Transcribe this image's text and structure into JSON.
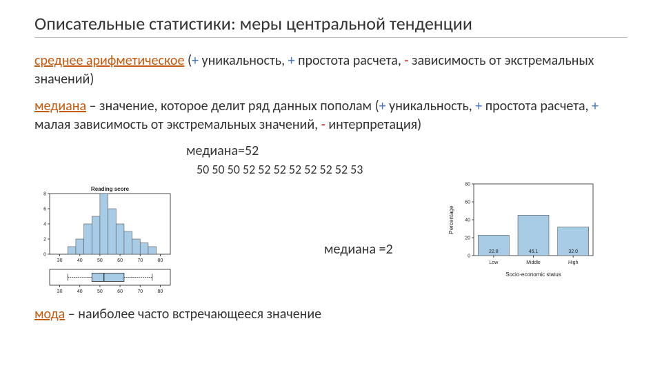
{
  "title": "Описательные статистики: меры центральной тенденции",
  "mean": {
    "term": "среднее арифметическое",
    "desc1": " (",
    "plus1": "+",
    "desc2": " уникальность, ",
    "plus2": "+",
    "desc3": " простота расчета, ",
    "minus1": "-",
    "desc4": " зависимость от экстремальных значений)"
  },
  "median": {
    "term": "медиана",
    "desc1": " – значение, которое делит ряд данных пополам (",
    "plus1": "+",
    "desc2": " уникальность, ",
    "plus2": "+",
    "desc3": " простота расчета, ",
    "plus3": "+",
    "desc4": " малая зависимость от экстремальных значений, ",
    "minus1": "-",
    "desc5": " интерпретация)",
    "eq": "медиана=52",
    "data": "50 50 50 52 52 52 52  52 52 52 53"
  },
  "median2_label": "медиана =2",
  "mode": {
    "term": "мода",
    "desc": " – наиболее часто встречающееся значение"
  },
  "chart1": {
    "type": "bar",
    "title": "Reading score",
    "title_fontsize": 8,
    "x_ticks": [
      30,
      40,
      50,
      60,
      70,
      80
    ],
    "y_ticks": [
      0,
      2,
      4,
      6,
      8
    ],
    "ylim": [
      0,
      8
    ],
    "xlim": [
      25,
      85
    ],
    "bars": [
      {
        "x": 34,
        "w": 4,
        "h": 1
      },
      {
        "x": 38,
        "w": 4,
        "h": 2
      },
      {
        "x": 42,
        "w": 4,
        "h": 4
      },
      {
        "x": 46,
        "w": 4,
        "h": 5
      },
      {
        "x": 50,
        "w": 4,
        "h": 8
      },
      {
        "x": 54,
        "w": 4,
        "h": 6
      },
      {
        "x": 58,
        "w": 4,
        "h": 4
      },
      {
        "x": 62,
        "w": 4,
        "h": 3
      },
      {
        "x": 66,
        "w": 4,
        "h": 2
      },
      {
        "x": 70,
        "w": 4,
        "h": 1.5
      },
      {
        "x": 74,
        "w": 4,
        "h": 1
      }
    ],
    "bar_color": "#a8cce5",
    "bar_stroke": "#555555",
    "axis_color": "#222222",
    "bg": "#ffffff"
  },
  "boxplot": {
    "x_ticks": [
      30,
      40,
      50,
      60,
      70,
      80
    ],
    "xlim": [
      25,
      85
    ],
    "whisker_low": 34,
    "whisker_high": 76,
    "q1": 46,
    "q3": 62,
    "median": 52,
    "box_color": "#a8cce5",
    "line_color": "#222222"
  },
  "chart2": {
    "type": "bar",
    "ylabel": "Percentage",
    "xlabel": "Socio-economic status",
    "y_ticks": [
      0,
      20,
      40,
      60,
      80
    ],
    "ylim": [
      0,
      80
    ],
    "categories": [
      "Low",
      "Middle",
      "High"
    ],
    "values": [
      22.8,
      45.1,
      32.0
    ],
    "value_labels": [
      "22.8",
      "45.1",
      "32.0"
    ],
    "bar_color": "#a8cce5",
    "bar_stroke": "#555555",
    "axis_color": "#222222",
    "bg": "#ffffff"
  }
}
